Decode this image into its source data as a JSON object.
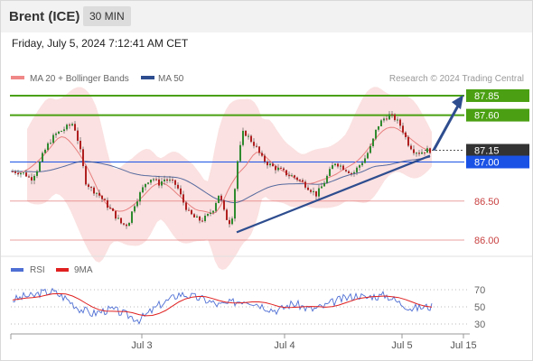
{
  "header": {
    "instrument": "Brent (ICE)",
    "timeframe": "30 MIN"
  },
  "timestamp": "Friday, July 5, 2024 7:12:41 AM CET",
  "credit": "Research © 2024 Trading Central",
  "colors": {
    "green": "#4aa012",
    "blue": "#1a52e6",
    "red": "#e06060",
    "dark": "#333333",
    "trend": "#2e4d8f",
    "candle": "#2f8a2f",
    "candle_bear": "#b02020",
    "band": "#f8c8c8",
    "rsi": "#4f6fd4",
    "rsi_ma": "#e02020"
  },
  "chart_data": {
    "type": "candlestick",
    "legend": [
      {
        "name": "MA 20 + Bollinger Bands",
        "color": "#f08888"
      },
      {
        "name": "MA 50",
        "color": "#2e4d8f"
      }
    ],
    "levels": [
      {
        "value": 87.85,
        "label": "87.85",
        "style": "resistance"
      },
      {
        "value": 87.6,
        "label": "87.60",
        "style": "resistance"
      },
      {
        "value": 87.15,
        "label": "87.15",
        "style": "last"
      },
      {
        "value": 87.0,
        "label": "87.00",
        "style": "pivot"
      },
      {
        "value": 86.5,
        "label": "86.50",
        "style": "support"
      },
      {
        "value": 86.0,
        "label": "86.00",
        "style": "support"
      }
    ],
    "x_labels": [
      "Jul 3",
      "Jul 4",
      "Jul 5",
      "Jul 15"
    ],
    "price_path": [
      86.88,
      86.87,
      86.85,
      86.78,
      86.9,
      87.1,
      87.25,
      87.35,
      87.4,
      87.45,
      87.5,
      87.2,
      86.75,
      86.65,
      86.6,
      86.5,
      86.4,
      86.3,
      86.2,
      86.2,
      86.45,
      86.6,
      86.75,
      86.8,
      86.72,
      86.78,
      86.75,
      86.7,
      86.5,
      86.35,
      86.28,
      86.25,
      86.3,
      86.4,
      86.6,
      86.3,
      86.2,
      87.0,
      87.4,
      87.3,
      87.2,
      87.05,
      86.98,
      86.93,
      86.9,
      86.85,
      86.82,
      86.78,
      86.72,
      86.65,
      86.58,
      86.7,
      86.85,
      87.0,
      86.95,
      86.9,
      86.85,
      86.95,
      87.05,
      87.2,
      87.45,
      87.55,
      87.6,
      87.55,
      87.45,
      87.25,
      87.15,
      87.12,
      87.15,
      87.15
    ],
    "rsi": {
      "name": "RSI",
      "ma_name": "9MA",
      "levels": [
        70,
        50,
        30
      ],
      "values": [
        58,
        60,
        63,
        62,
        66,
        67,
        68,
        64,
        60,
        54,
        48,
        45,
        42,
        44,
        46,
        47,
        44,
        41,
        38,
        35,
        40,
        46,
        52,
        56,
        60,
        65,
        64,
        62,
        60,
        58,
        55,
        52,
        53,
        55,
        57,
        58,
        56,
        53,
        50,
        47,
        46,
        50,
        54,
        52,
        49,
        47,
        49,
        51,
        55,
        58,
        60,
        62,
        64,
        60,
        63,
        62,
        64,
        60,
        55,
        52,
        48,
        49,
        50,
        50
      ]
    }
  }
}
